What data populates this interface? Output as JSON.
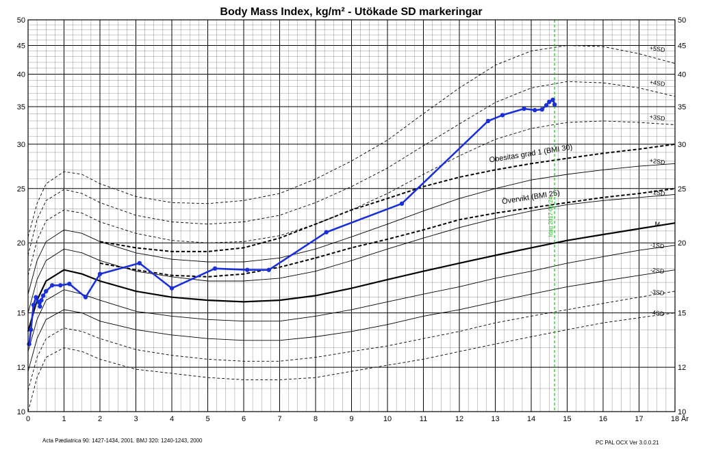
{
  "chart_data": {
    "type": "line",
    "title": "Body Mass Index, kg/m² - Utökade SD markeringar",
    "xlabel": "År",
    "xlim": [
      0,
      18
    ],
    "ylim": [
      10,
      50
    ],
    "yscale": "log",
    "x_ticks": [
      0,
      1,
      2,
      3,
      4,
      5,
      6,
      7,
      8,
      9,
      10,
      11,
      12,
      13,
      14,
      15,
      16,
      17,
      18
    ],
    "y_ticks": [
      10,
      12,
      15,
      20,
      25,
      30,
      35,
      40,
      45,
      50
    ],
    "grid": true,
    "reference_curves": [
      {
        "label": "+5SD",
        "dashed": true,
        "bold": false,
        "x": [
          0,
          0.25,
          0.5,
          1,
          1.5,
          2,
          3,
          4,
          5,
          6,
          7,
          8,
          9,
          10,
          11,
          12,
          13,
          14,
          15,
          16,
          17,
          18
        ],
        "y": [
          20.5,
          23.5,
          25.5,
          26.8,
          26.5,
          25.5,
          24.2,
          23.6,
          23.5,
          23.8,
          24.5,
          26.0,
          28.0,
          30.5,
          34.0,
          37.8,
          41.5,
          44.0,
          45.0,
          44.8,
          43.5,
          41.8
        ]
      },
      {
        "label": "+4SD",
        "dashed": true,
        "bold": false,
        "x": [
          0,
          0.25,
          0.5,
          1,
          1.5,
          2,
          3,
          4,
          5,
          6,
          7,
          8,
          9,
          10,
          11,
          12,
          13,
          14,
          15,
          16,
          17,
          18
        ],
        "y": [
          19.0,
          22.0,
          23.8,
          24.9,
          24.5,
          23.6,
          22.4,
          21.8,
          21.6,
          21.8,
          22.4,
          23.6,
          25.2,
          27.2,
          29.8,
          32.6,
          35.6,
          37.8,
          38.8,
          38.6,
          37.8,
          36.5
        ]
      },
      {
        "label": "+3SD",
        "dashed": true,
        "bold": false,
        "x": [
          0,
          0.25,
          0.5,
          1,
          1.5,
          2,
          3,
          4,
          5,
          6,
          7,
          8,
          9,
          10,
          11,
          12,
          13,
          14,
          15,
          16,
          17,
          18
        ],
        "y": [
          17.5,
          20.2,
          21.9,
          22.9,
          22.6,
          21.8,
          20.8,
          20.2,
          20.0,
          20.1,
          20.6,
          21.6,
          22.9,
          24.5,
          26.5,
          28.6,
          30.6,
          32.0,
          32.8,
          33.0,
          32.8,
          32.5
        ]
      },
      {
        "label": "+2SD",
        "dashed": false,
        "bold": false,
        "x": [
          0,
          0.25,
          0.5,
          1,
          1.5,
          2,
          3,
          4,
          5,
          6,
          7,
          8,
          9,
          10,
          11,
          12,
          13,
          14,
          15,
          16,
          17,
          18
        ],
        "y": [
          16.2,
          18.6,
          20.1,
          21.1,
          20.8,
          20.1,
          19.2,
          18.7,
          18.5,
          18.5,
          18.8,
          19.5,
          20.5,
          21.6,
          22.8,
          24.0,
          25.0,
          25.9,
          26.5,
          27.0,
          27.4,
          27.7
        ]
      },
      {
        "label": "+1SD",
        "dashed": false,
        "bold": false,
        "x": [
          0,
          0.25,
          0.5,
          1,
          1.5,
          2,
          3,
          4,
          5,
          6,
          7,
          8,
          9,
          10,
          11,
          12,
          13,
          14,
          15,
          16,
          17,
          18
        ],
        "y": [
          15.0,
          17.2,
          18.6,
          19.5,
          19.2,
          18.6,
          17.8,
          17.4,
          17.1,
          17.1,
          17.3,
          17.8,
          18.6,
          19.5,
          20.4,
          21.3,
          22.1,
          22.8,
          23.4,
          23.8,
          24.1,
          24.4
        ]
      },
      {
        "label": "M",
        "dashed": false,
        "bold": true,
        "x": [
          0,
          0.25,
          0.5,
          1,
          1.5,
          2,
          3,
          4,
          5,
          6,
          7,
          8,
          9,
          10,
          11,
          12,
          13,
          14,
          15,
          16,
          17,
          18
        ],
        "y": [
          13.9,
          15.8,
          17.1,
          17.9,
          17.6,
          17.1,
          16.4,
          16.0,
          15.8,
          15.7,
          15.8,
          16.1,
          16.6,
          17.2,
          17.8,
          18.4,
          19.0,
          19.6,
          20.2,
          20.7,
          21.2,
          21.7
        ]
      },
      {
        "label": "-1SD",
        "dashed": false,
        "bold": false,
        "x": [
          0,
          0.25,
          0.5,
          1,
          1.5,
          2,
          3,
          4,
          5,
          6,
          7,
          8,
          9,
          10,
          11,
          12,
          13,
          14,
          15,
          16,
          17,
          18
        ],
        "y": [
          12.8,
          14.6,
          15.8,
          16.5,
          16.2,
          15.8,
          15.1,
          14.8,
          14.6,
          14.5,
          14.5,
          14.8,
          15.2,
          15.7,
          16.2,
          16.7,
          17.3,
          17.8,
          18.4,
          18.9,
          19.4,
          19.8
        ]
      },
      {
        "label": "-2SD",
        "dashed": false,
        "bold": false,
        "x": [
          0,
          0.25,
          0.5,
          1,
          1.5,
          2,
          3,
          4,
          5,
          6,
          7,
          8,
          9,
          10,
          11,
          12,
          13,
          14,
          15,
          16,
          17,
          18
        ],
        "y": [
          11.8,
          13.5,
          14.6,
          15.2,
          15.0,
          14.5,
          14.0,
          13.7,
          13.5,
          13.4,
          13.4,
          13.6,
          13.9,
          14.3,
          14.8,
          15.2,
          15.7,
          16.2,
          16.7,
          17.1,
          17.5,
          17.9
        ]
      },
      {
        "label": "-3SD",
        "dashed": true,
        "bold": false,
        "x": [
          0,
          0.25,
          0.5,
          1,
          1.5,
          2,
          3,
          4,
          5,
          6,
          7,
          8,
          9,
          10,
          11,
          12,
          13,
          14,
          15,
          16,
          17,
          18
        ],
        "y": [
          10.9,
          12.5,
          13.5,
          14.1,
          13.9,
          13.5,
          12.9,
          12.6,
          12.4,
          12.3,
          12.3,
          12.5,
          12.8,
          13.1,
          13.5,
          13.9,
          14.4,
          14.8,
          15.2,
          15.6,
          16.0,
          16.4
        ]
      },
      {
        "label": "-4SD",
        "dashed": true,
        "bold": false,
        "x": [
          0,
          0.25,
          0.5,
          1,
          1.5,
          2,
          3,
          4,
          5,
          6,
          7,
          8,
          9,
          10,
          11,
          12,
          13,
          14,
          15,
          16,
          17,
          18
        ],
        "y": [
          10.0,
          11.5,
          12.5,
          13.0,
          12.8,
          12.4,
          11.9,
          11.7,
          11.5,
          11.4,
          11.4,
          11.5,
          11.8,
          12.1,
          12.4,
          12.8,
          13.2,
          13.6,
          14.0,
          14.4,
          14.7,
          15.0
        ]
      }
    ],
    "iotf_curves": [
      {
        "label": "Obesitas grad 1 (BMI 30)",
        "x": [
          2,
          3,
          4,
          5,
          6,
          7,
          8,
          9,
          10,
          11,
          12,
          13,
          14,
          15,
          16,
          17,
          18
        ],
        "y": [
          20.1,
          19.6,
          19.3,
          19.3,
          19.6,
          20.4,
          21.6,
          22.9,
          24.0,
          25.2,
          26.2,
          27.0,
          27.7,
          28.3,
          28.9,
          29.4,
          30.0
        ]
      },
      {
        "label": "Övervikt (BMI 25)",
        "x": [
          2,
          3,
          4,
          5,
          6,
          7,
          8,
          9,
          10,
          11,
          12,
          13,
          14,
          15,
          16,
          17,
          18
        ],
        "y": [
          18.4,
          17.9,
          17.5,
          17.4,
          17.6,
          18.1,
          18.8,
          19.6,
          20.3,
          21.1,
          22.0,
          22.6,
          23.1,
          23.6,
          24.1,
          24.5,
          25.0
        ]
      }
    ],
    "today_marker": {
      "label": "Idag 2017-08-24",
      "x": 14.65
    },
    "series": [
      {
        "color": "#1a2fd6",
        "x": [
          0.03,
          0.08,
          0.15,
          0.22,
          0.28,
          0.33,
          0.37,
          0.42,
          0.5,
          0.67,
          0.9,
          1.15,
          1.6,
          2.0,
          3.1,
          4.0,
          5.2,
          6.1,
          6.7,
          8.3,
          10.4,
          12.8,
          13.2,
          13.8,
          14.1,
          14.3,
          14.42,
          14.5,
          14.6,
          14.65
        ],
        "y": [
          13.2,
          14.0,
          15.5,
          16.0,
          15.7,
          15.4,
          15.8,
          16.1,
          16.4,
          16.8,
          16.8,
          16.9,
          16.0,
          17.6,
          18.4,
          16.6,
          18.0,
          17.9,
          17.9,
          20.9,
          23.5,
          33.0,
          33.8,
          34.7,
          34.5,
          34.6,
          35.2,
          35.7,
          36.0,
          35.3
        ]
      }
    ],
    "line_color": "#000000",
    "grid_color": "#000000",
    "today_color": "#22bb22",
    "footer_left": "Acta Pædiatrica 90: 1427-1434, 2001.   BMJ 320: 1240-1243, 2000",
    "footer_right": "PC PAL OCX Ver 3.0.0.21"
  }
}
